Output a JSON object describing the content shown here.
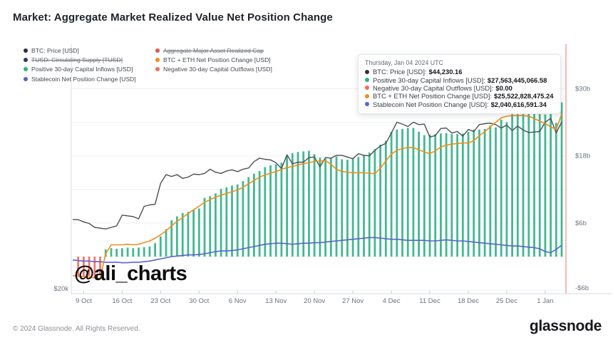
{
  "page": {
    "title": "Market: Aggregate Market Realized Value Net Position Change",
    "watermark": "@ali_charts"
  },
  "footer": {
    "copyright": "© 2024 Glassnode. All Rights Reserved.",
    "brand": "glassnode"
  },
  "legend": {
    "columns": [
      {
        "items": [
          {
            "label": "BTC: Price [USD]",
            "color": "#2E3138",
            "disabled": false
          },
          {
            "label": "TUSD: Circulating Supply [TUSD]",
            "color": "#2B3A67",
            "disabled": true
          },
          {
            "label": "Positive 30-day Capital Inflows [USD]",
            "color": "#2FB185",
            "disabled": false
          },
          {
            "label": "Stablecoin Net Position Change [USD]",
            "color": "#5A62D2",
            "disabled": false
          }
        ]
      },
      {
        "items": [
          {
            "label": "Aggregate Major Asset Realized Cap",
            "color": "#E4574D",
            "disabled": true
          },
          {
            "label": "BTC + ETH Net Position Change [USD]",
            "color": "#EF8E1D",
            "disabled": false
          },
          {
            "label": "Negative 30-day Capital Outflows [USD]",
            "color": "#F26B5E",
            "disabled": false
          }
        ]
      }
    ]
  },
  "tooltip": {
    "date": "Thursday, Jan 04 2024 UTC",
    "rows": [
      {
        "label": "BTC: Price [USD]:",
        "value": "$44,230.16",
        "color": "#2E3138"
      },
      {
        "label": "Positive 30-day Capital Inflows [USD]:",
        "value": "$27,563,445,066.58",
        "color": "#2FB185"
      },
      {
        "label": "Negative 30-day Capital Outflows [USD]:",
        "value": "$0.00",
        "color": "#F26B5E"
      },
      {
        "label": "BTC + ETH Net Position Change [USD]:",
        "value": "$25,522,828,475.24",
        "color": "#EF8E1D"
      },
      {
        "label": "Stablecoin Net Position Change [USD]:",
        "value": "$2,040,616,591.34",
        "color": "#5A62D2"
      }
    ]
  },
  "chart_data": {
    "type": "combo",
    "start_date": "2023-10-07",
    "end_date": "2024-01-04",
    "days": 90,
    "x_tick_labels": [
      "9 Oct",
      "16 Oct",
      "23 Oct",
      "30 Oct",
      "6 Nov",
      "13 Nov",
      "20 Nov",
      "27 Nov",
      "4 Dec",
      "11 Dec",
      "18 Dec",
      "25 Dec",
      "1 Jan"
    ],
    "x_tick_day_index": [
      2,
      9,
      16,
      23,
      30,
      37,
      44,
      51,
      58,
      65,
      72,
      79,
      86
    ],
    "right_axis": {
      "unit": "billions USD",
      "tick_labels": [
        "$30b",
        "$18b",
        "$6b",
        "-$6b"
      ],
      "tick_values_busd": [
        30,
        18,
        6,
        -6
      ],
      "gridline_values_busd": [
        30,
        24,
        18,
        12,
        6,
        0,
        -6
      ]
    },
    "left_axis": {
      "unit": "USD (BTC price, log)",
      "tick_labels": [
        "$20k"
      ],
      "tick_values_usd": [
        20000
      ]
    },
    "crosshair_color": "#F19999",
    "series": [
      {
        "name": "BTC: Price [USD]",
        "type": "line",
        "axis": "price",
        "color": "#4C4F54",
        "values": [
          27.9,
          27.9,
          27.6,
          27.4,
          26.9,
          26.8,
          26.7,
          26.9,
          27.1,
          28.5,
          28.4,
          28.3,
          28.0,
          29.7,
          29.9,
          30.0,
          33.1,
          34.5,
          34.2,
          34.5,
          33.9,
          34.1,
          34.6,
          34.5,
          34.7,
          35.4,
          34.9,
          34.7,
          35.1,
          35.3,
          35.0,
          35.4,
          35.6,
          36.7,
          37.3,
          37.1,
          37.0,
          36.5,
          35.5,
          37.9,
          36.3,
          36.6,
          36.6,
          37.4,
          37.5,
          35.8,
          37.4,
          37.3,
          37.8,
          37.8,
          37.5,
          37.2,
          38.1,
          37.8,
          37.7,
          38.7,
          39.5,
          40.0,
          42.0,
          44.2,
          43.8,
          43.3,
          44.2,
          43.7,
          43.8,
          41.2,
          41.5,
          42.9,
          43.0,
          42.0,
          42.3,
          41.4,
          42.7,
          42.3,
          43.7,
          43.9,
          44.0,
          43.7,
          43.0,
          43.6,
          42.5,
          43.4,
          42.6,
          42.1,
          42.2,
          42.3,
          44.2,
          45.0,
          42.0,
          44.23
        ]
      },
      {
        "name": "Positive 30-day Capital Inflows [USD]",
        "type": "bar",
        "axis": "busd",
        "color": "#2FB185",
        "values": [
          0,
          0,
          0,
          0,
          0,
          0,
          1.3,
          1.5,
          1.4,
          1.5,
          1.6,
          1.5,
          1.6,
          1.7,
          1.8,
          2.4,
          3.6,
          4.9,
          6.5,
          7.2,
          7.8,
          8.0,
          8.3,
          8.6,
          10.5,
          10.8,
          11.3,
          12.1,
          12.4,
          12.7,
          12.9,
          13.5,
          14.2,
          14.8,
          15.3,
          16.0,
          16.3,
          16.5,
          16.8,
          18.0,
          18.5,
          18.7,
          18.8,
          18.9,
          18.3,
          17.7,
          17.5,
          17.6,
          17.9,
          17.4,
          17.3,
          17.6,
          17.8,
          18.2,
          18.6,
          19.2,
          20.0,
          20.7,
          22.3,
          22.7,
          22.8,
          23.0,
          23.0,
          22.3,
          21.7,
          21.8,
          21.9,
          22.0,
          22.1,
          21.9,
          21.9,
          22.0,
          22.3,
          22.7,
          22.7,
          22.8,
          23.4,
          23.1,
          24.5,
          24.0,
          26.8,
          26.5,
          26.8,
          26.3,
          26.0,
          25.8,
          25.4,
          25.6,
          23.9,
          27.56
        ]
      },
      {
        "name": "Negative 30-day Capital Outflows [USD]",
        "type": "bar",
        "axis": "busd",
        "color": "#F26B5E",
        "values": [
          0,
          -3.4,
          -3.6,
          -3.5,
          -3.6,
          -3.3,
          0,
          0,
          0,
          0,
          0,
          0,
          0,
          0,
          0,
          0,
          0,
          0,
          0,
          0,
          0,
          0,
          0,
          0,
          0,
          0,
          0,
          0,
          0,
          0,
          0,
          0,
          0,
          0,
          0,
          0,
          0,
          0,
          0,
          0,
          0,
          0,
          0,
          0,
          0,
          0,
          0,
          0,
          0,
          0,
          0,
          0,
          0,
          0,
          0,
          0,
          0,
          0,
          0,
          0,
          0,
          0,
          0,
          0,
          0,
          0,
          0,
          0,
          0,
          0,
          0,
          0,
          0,
          0,
          0,
          0,
          0,
          0,
          0,
          0,
          0,
          0,
          0,
          0,
          0,
          0,
          0,
          0,
          0,
          0
        ]
      },
      {
        "name": "BTC + ETH Net Position Change [USD]",
        "type": "line",
        "axis": "busd",
        "color": "#EF8E1D",
        "values": [
          -3.4,
          -3.5,
          -3.6,
          -3.7,
          -3.8,
          -3.9,
          0.5,
          2.1,
          2.1,
          2.1,
          2.2,
          2.1,
          2.2,
          2.5,
          2.8,
          3.3,
          3.9,
          4.6,
          5.5,
          6.3,
          7.0,
          7.7,
          8.4,
          9.0,
          9.7,
          10.2,
          10.6,
          11.0,
          11.3,
          11.6,
          11.9,
          12.4,
          13.0,
          13.6,
          14.2,
          14.6,
          14.9,
          15.2,
          15.6,
          15.9,
          16.1,
          16.4,
          16.6,
          16.8,
          17.0,
          17.1,
          17.2,
          16.5,
          15.6,
          15.2,
          15.1,
          15.0,
          15.0,
          15.0,
          14.9,
          14.8,
          15.8,
          17.1,
          18.3,
          19.0,
          19.3,
          19.5,
          19.5,
          19.1,
          18.7,
          18.4,
          18.9,
          19.6,
          19.9,
          20.1,
          20.2,
          20.3,
          20.3,
          20.7,
          21.6,
          22.3,
          23.2,
          24.0,
          24.8,
          25.1,
          25.2,
          25.2,
          25.2,
          25.1,
          24.7,
          24.2,
          23.8,
          23.2,
          22.7,
          25.52
        ]
      },
      {
        "name": "Stablecoin Net Position Change [USD]",
        "type": "line",
        "axis": "busd",
        "color": "#5A62D2",
        "values": [
          -0.6,
          -0.7,
          -0.8,
          -0.8,
          -0.9,
          -0.9,
          -1.0,
          -1.0,
          -1.0,
          -1.1,
          -1.1,
          -1.0,
          -1.0,
          -0.9,
          -0.8,
          -0.6,
          -0.4,
          -0.2,
          0.0,
          0.1,
          0.2,
          0.3,
          0.3,
          0.4,
          0.5,
          0.7,
          0.9,
          1.0,
          1.0,
          1.1,
          1.2,
          1.4,
          1.6,
          1.8,
          2.0,
          2.2,
          2.3,
          2.4,
          2.4,
          2.3,
          2.2,
          2.3,
          2.4,
          2.4,
          2.5,
          2.5,
          2.6,
          2.7,
          2.8,
          2.9,
          3.0,
          3.1,
          3.2,
          3.3,
          3.4,
          3.4,
          3.3,
          3.2,
          3.1,
          3.1,
          3.0,
          2.9,
          2.9,
          2.9,
          2.9,
          2.8,
          2.8,
          2.9,
          3.0,
          2.9,
          2.8,
          2.8,
          2.7,
          2.6,
          2.5,
          2.4,
          2.3,
          2.2,
          2.1,
          2.0,
          1.9,
          1.9,
          1.8,
          1.7,
          1.6,
          1.4,
          0.9,
          0.7,
          1.3,
          2.04
        ]
      }
    ]
  }
}
